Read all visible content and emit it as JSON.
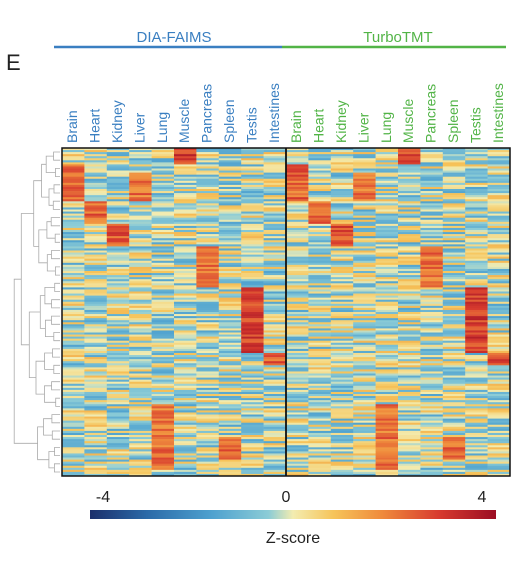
{
  "panel_label": "E",
  "chart_data": {
    "type": "heatmap",
    "title": "",
    "colorbar_label": "Z-score",
    "zlim": [
      -4,
      4
    ],
    "colorbar_ticks": [
      "-4",
      "0",
      "4"
    ],
    "row_dendrogram": true,
    "groups": [
      {
        "name": "DIA-FAIMS",
        "color": "#3a7fc1",
        "columns": [
          "Brain",
          "Heart",
          "Kidney",
          "Liver",
          "Lung",
          "Muscle",
          "Pancreas",
          "Spleen",
          "Testis",
          "Intestines"
        ]
      },
      {
        "name": "TurboTMT",
        "color": "#52b447",
        "columns": [
          "Brain",
          "Heart",
          "Kidney",
          "Liver",
          "Lung",
          "Muscle",
          "Pancreas",
          "Spleen",
          "Testis",
          "Intestines"
        ]
      }
    ],
    "row_count": 160,
    "blocks": [
      {
        "tissue": "Brain",
        "row_start": 0.05,
        "row_end": 0.16,
        "zscore": 3.0
      },
      {
        "tissue": "Heart",
        "row_start": 0.16,
        "row_end": 0.23,
        "zscore": 3.0
      },
      {
        "tissue": "Kidney",
        "row_start": 0.23,
        "row_end": 0.3,
        "zscore": 3.2
      },
      {
        "tissue": "Liver",
        "row_start": 0.07,
        "row_end": 0.16,
        "zscore": 2.8
      },
      {
        "tissue": "Muscle",
        "row_start": 0.0,
        "row_end": 0.05,
        "zscore": 3.6
      },
      {
        "tissue": "Pancreas",
        "row_start": 0.3,
        "row_end": 0.42,
        "zscore": 2.8
      },
      {
        "tissue": "Spleen",
        "row_start": 0.88,
        "row_end": 0.95,
        "zscore": 3.0
      },
      {
        "tissue": "Testis",
        "row_start": 0.42,
        "row_end": 0.62,
        "zscore": 3.6
      },
      {
        "tissue": "Intestines",
        "row_start": 0.62,
        "row_end": 0.66,
        "zscore": 3.2
      },
      {
        "tissue": "Lung",
        "row_start": 0.78,
        "row_end": 0.98,
        "zscore": 2.8
      }
    ]
  }
}
